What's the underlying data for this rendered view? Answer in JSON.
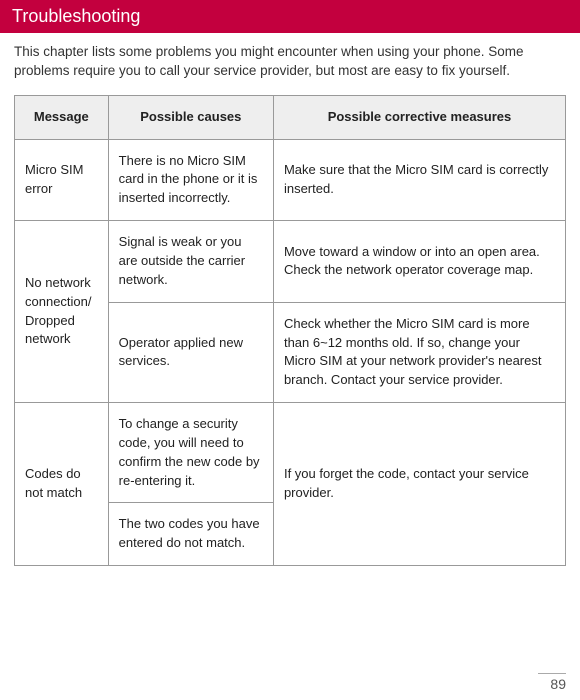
{
  "header": {
    "title": "Troubleshooting"
  },
  "intro": "This chapter lists some problems you might encounter when using your phone. Some problems require you to call your service provider, but most are easy to fix yourself.",
  "table": {
    "headers": {
      "msg": "Message",
      "cause": "Possible causes",
      "fix": "Possible corrective measures"
    },
    "rows": {
      "r1": {
        "msg": "Micro SIM error",
        "cause": "There is no Micro SIM card in the phone or it is inserted incorrectly.",
        "fix": "Make sure that the Micro SIM card is correctly inserted."
      },
      "r2": {
        "msg": "No network connection/ Dropped network",
        "cause_a": "Signal is weak or you are outside the carrier network.",
        "fix_a": "Move toward a window or into an open area. Check the network operator coverage map.",
        "cause_b": "Operator applied new services.",
        "fix_b": "Check whether the Micro SIM card is more than 6~12 months old. If so, change your Micro SIM at your network provider's nearest branch. Contact your service provider."
      },
      "r3": {
        "msg": "Codes do not match",
        "cause_a": "To change a security code, you will need to confirm the new code by re-entering it.",
        "cause_b": "The two codes you have entered do not match.",
        "fix": "If you forget the code, contact your service provider."
      }
    }
  },
  "pageNumber": "89",
  "colors": {
    "header_bg": "#c3003e",
    "th_bg": "#eeeeee",
    "border": "#999999"
  }
}
